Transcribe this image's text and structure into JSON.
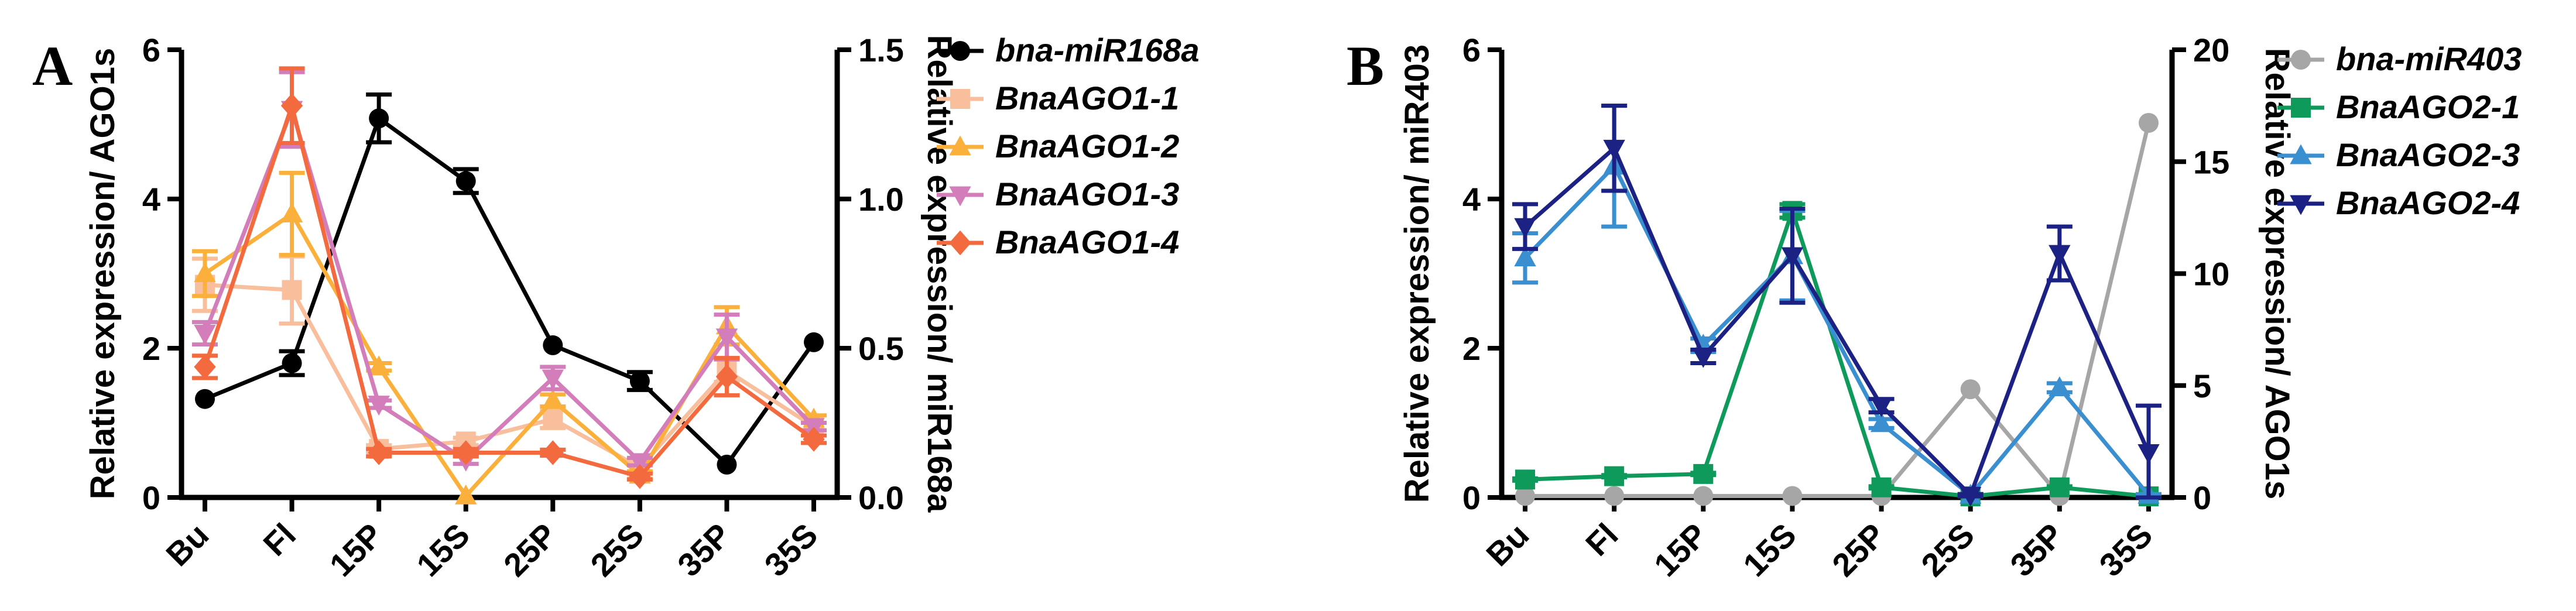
{
  "chart_data": [
    {
      "type": "line",
      "panel_label": "A",
      "categories": [
        "Bu",
        "Fl",
        "15P",
        "15S",
        "25P",
        "25S",
        "35P",
        "35S"
      ],
      "left_axis": {
        "label": "Relative expression/ AGO1s",
        "ylim": [
          0,
          6
        ],
        "ticks": [
          "0",
          "2",
          "4",
          "6"
        ]
      },
      "right_axis": {
        "label": "Relative expression/ miR168a",
        "ylim": [
          0,
          1.5
        ],
        "ticks": [
          "0.0",
          "0.5",
          "1.0",
          "1.5"
        ]
      },
      "legend_position": "right",
      "series": [
        {
          "name": "bna-miR168a",
          "axis": "right",
          "color": "#000000",
          "marker": "circle",
          "values": [
            0.33,
            0.45,
            1.27,
            1.06,
            0.51,
            0.39,
            0.11,
            0.52
          ],
          "errors": [
            0.01,
            0.04,
            0.08,
            0.04,
            0.01,
            0.03,
            0.01,
            0.01
          ]
        },
        {
          "name": "BnaAGO1-1",
          "axis": "left",
          "color": "#F9BE9B",
          "marker": "square",
          "values": [
            2.85,
            2.78,
            0.65,
            0.75,
            1.05,
            0.4,
            1.7,
            0.95
          ],
          "errors": [
            0.35,
            0.45,
            0.05,
            0.05,
            0.12,
            0.05,
            0.15,
            0.05
          ]
        },
        {
          "name": "BnaAGO1-2",
          "axis": "left",
          "color": "#FBB03B",
          "marker": "triangle-up",
          "values": [
            3.0,
            3.8,
            1.75,
            0.02,
            1.3,
            0.3,
            2.3,
            1.05
          ],
          "errors": [
            0.3,
            0.55,
            0.05,
            0.02,
            0.08,
            0.05,
            0.25,
            0.05
          ]
        },
        {
          "name": "BnaAGO1-3",
          "axis": "left",
          "color": "#D37DBA",
          "marker": "triangle-down",
          "values": [
            2.2,
            5.2,
            1.25,
            0.5,
            1.6,
            0.48,
            2.15,
            0.95
          ],
          "errors": [
            0.15,
            0.5,
            0.05,
            0.05,
            0.15,
            0.05,
            0.3,
            0.05
          ]
        },
        {
          "name": "BnaAGO1-4",
          "axis": "left",
          "color": "#F26A3E",
          "marker": "diamond",
          "values": [
            1.75,
            5.25,
            0.6,
            0.6,
            0.6,
            0.28,
            1.62,
            0.78
          ],
          "errors": [
            0.15,
            0.5,
            0.05,
            0.05,
            0.04,
            0.04,
            0.25,
            0.05
          ]
        }
      ]
    },
    {
      "type": "line",
      "panel_label": "B",
      "categories": [
        "Bu",
        "Fl",
        "15P",
        "15S",
        "25P",
        "25S",
        "35P",
        "35S"
      ],
      "left_axis": {
        "label": "Relative expression/ miR403",
        "ylim": [
          0,
          6
        ],
        "ticks": [
          "0",
          "2",
          "4",
          "6"
        ]
      },
      "right_axis": {
        "label": "Relative expression/ AGO1s",
        "ylim": [
          0,
          20
        ],
        "ticks": [
          "0",
          "5",
          "10",
          "15",
          "20"
        ]
      },
      "legend_position": "right",
      "series": [
        {
          "name": "bna-miR403",
          "axis": "left",
          "color": "#A6A6A6",
          "marker": "circle",
          "values": [
            0.02,
            0.02,
            0.02,
            0.02,
            0.02,
            1.45,
            0.02,
            5.02
          ],
          "errors": [
            0,
            0,
            0,
            0,
            0,
            0.02,
            0,
            0.02
          ]
        },
        {
          "name": "BnaAGO2-1",
          "axis": "right",
          "color": "#0E9A5B",
          "marker": "square",
          "values": [
            0.8,
            0.95,
            1.05,
            12.8,
            0.45,
            0.05,
            0.45,
            0.05
          ],
          "errors": [
            0.05,
            0.05,
            0.05,
            0.3,
            0.05,
            0.02,
            0.05,
            0.02
          ]
        },
        {
          "name": "BnaAGO2-3",
          "axis": "right",
          "color": "#3A8FD0",
          "marker": "triangle-up",
          "values": [
            10.7,
            14.8,
            6.8,
            10.8,
            3.3,
            0.1,
            4.9,
            0.1
          ],
          "errors": [
            1.1,
            2.7,
            0.3,
            2.0,
            0.2,
            0.05,
            0.2,
            0.05
          ]
        },
        {
          "name": "BnaAGO2-4",
          "axis": "right",
          "color": "#1C2184",
          "marker": "triangle-down",
          "values": [
            12.1,
            15.6,
            6.3,
            10.8,
            4.1,
            0.1,
            10.9,
            2.0
          ],
          "errors": [
            1.0,
            1.9,
            0.3,
            2.1,
            0.3,
            0.05,
            1.2,
            2.1
          ]
        }
      ]
    }
  ]
}
